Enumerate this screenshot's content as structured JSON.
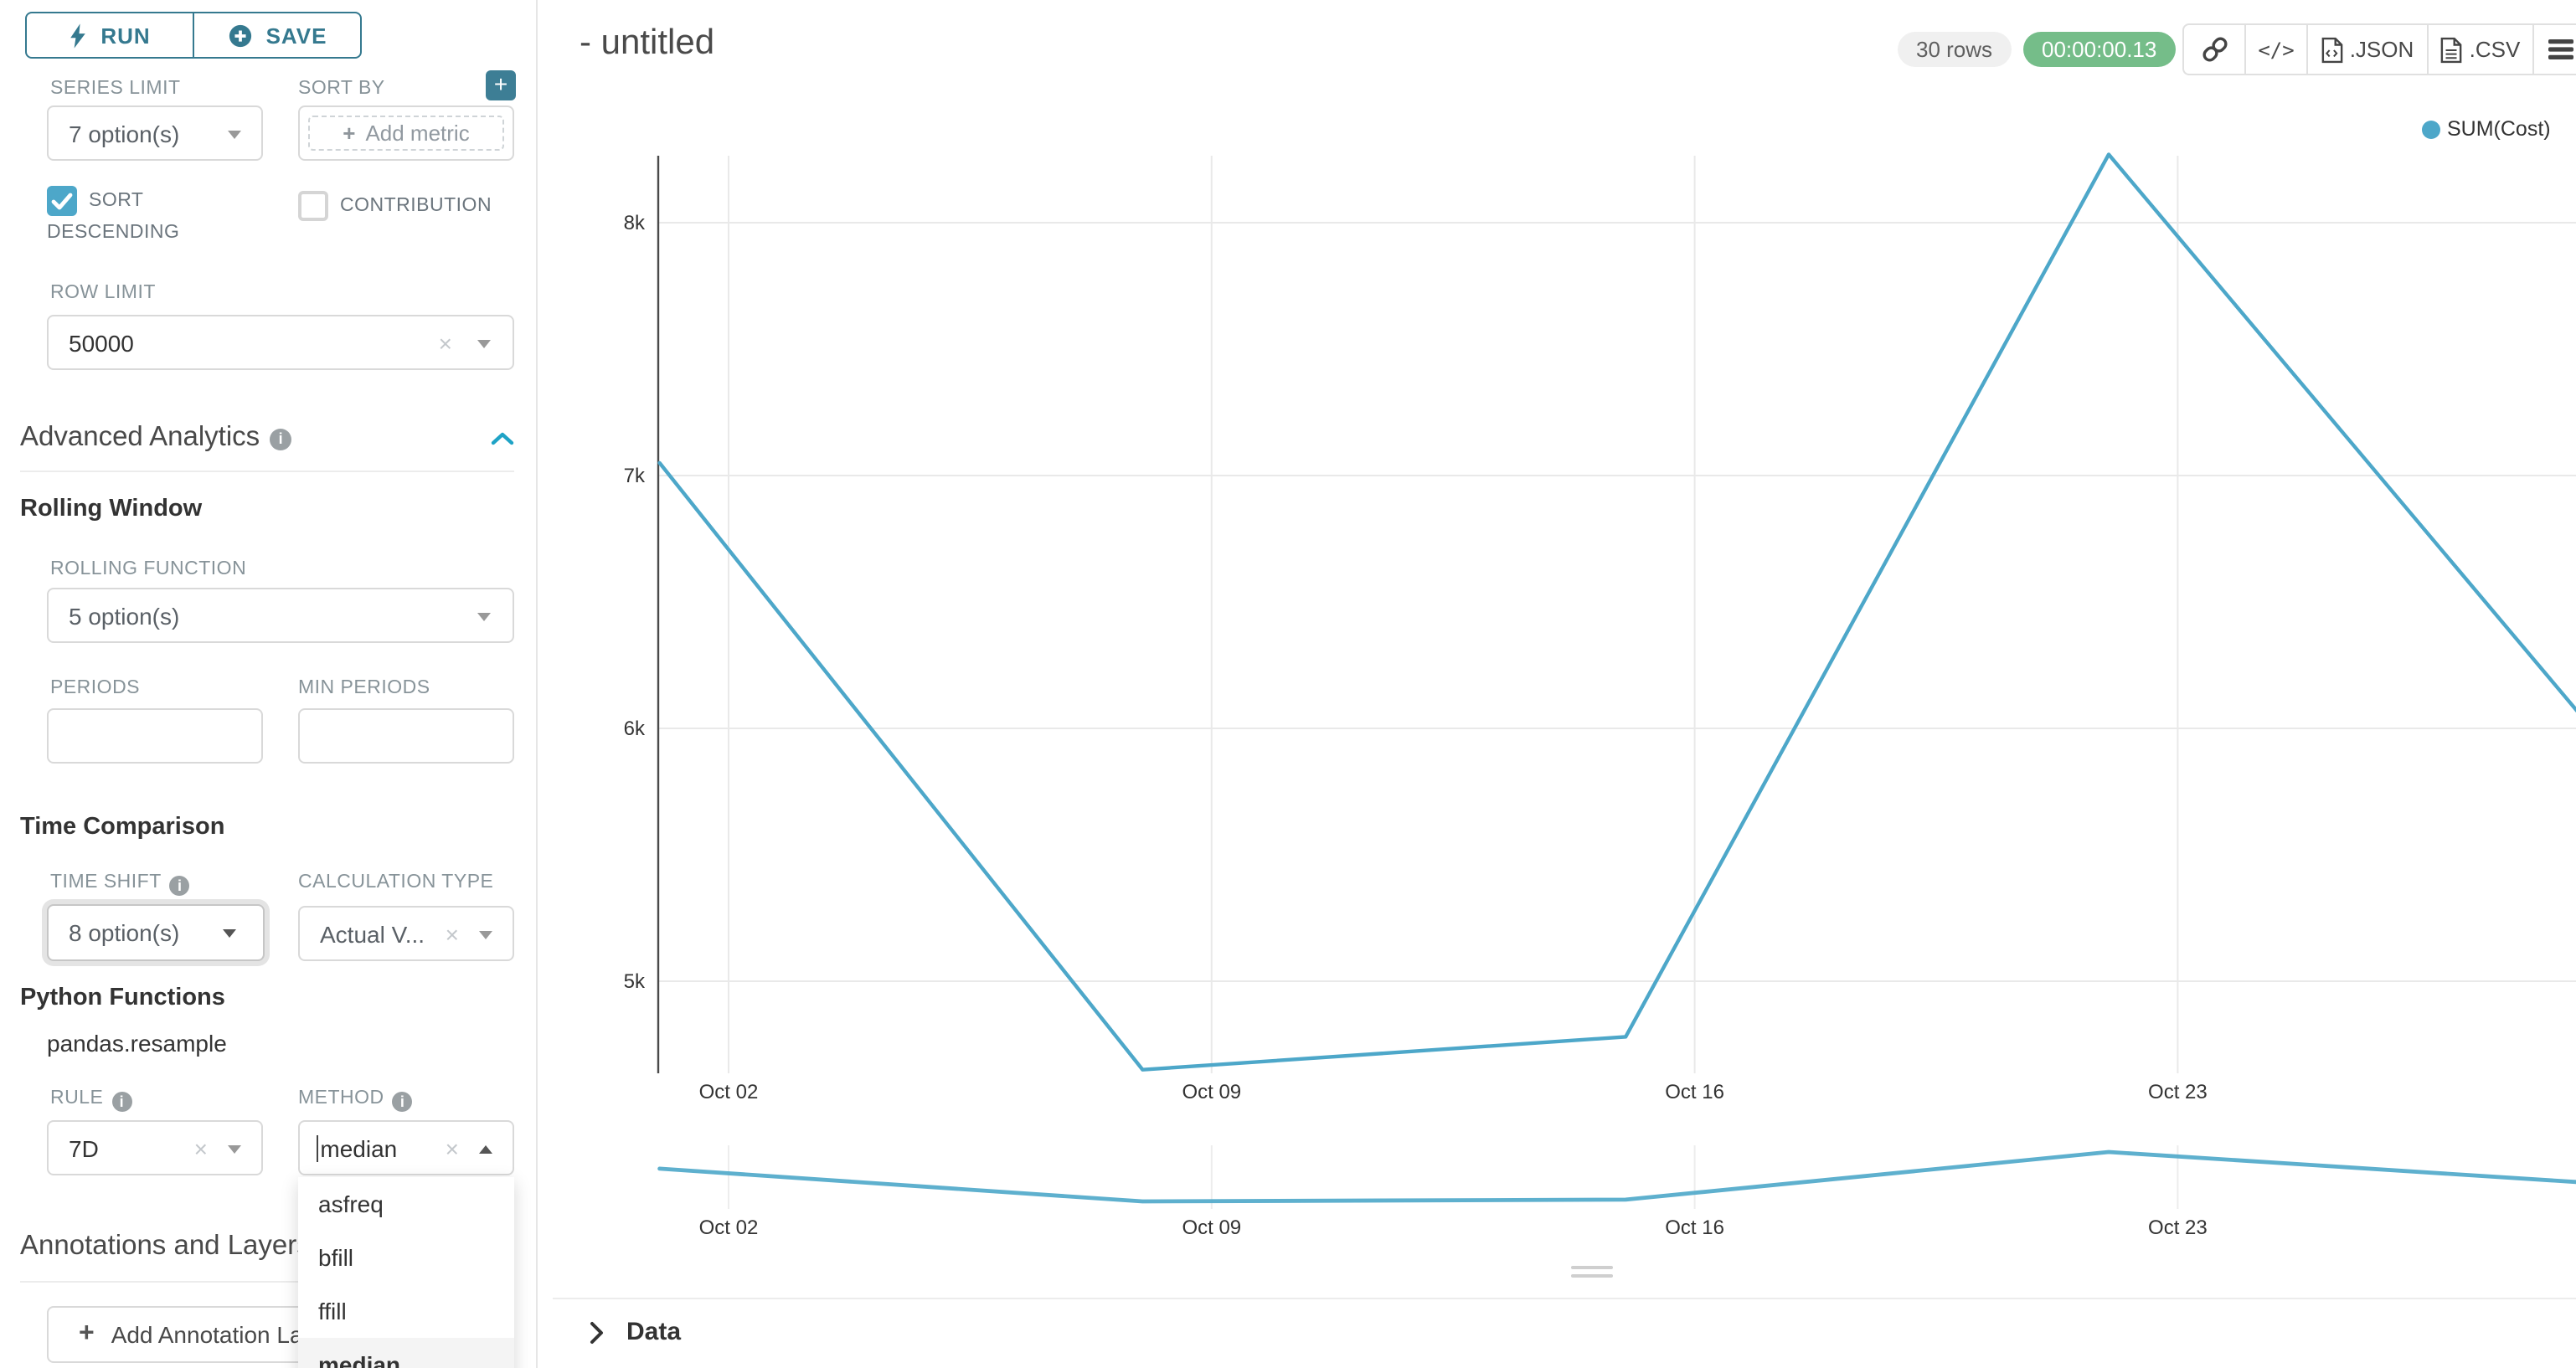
{
  "colors": {
    "teal_button": "#35798f",
    "plus_button": "#3d7e95",
    "accent_chevron": "#1fa3c6",
    "check_blue": "#4da7c9",
    "line_blue": "#4da7c9",
    "badge_green": "#75bd89"
  },
  "toolbar": {
    "run_label": "RUN",
    "save_label": "SAVE"
  },
  "controls": {
    "series_limit": {
      "label": "SERIES LIMIT",
      "value": "7 option(s)"
    },
    "sort_by": {
      "label": "SORT BY",
      "placeholder": "Add metric"
    },
    "sort_descending": {
      "label": "SORT DESCENDING",
      "checked": true
    },
    "contribution": {
      "label": "CONTRIBUTION",
      "checked": false
    },
    "row_limit": {
      "label": "ROW LIMIT",
      "value": "50000"
    },
    "advanced_analytics_title": "Advanced Analytics",
    "rolling_window": {
      "title": "Rolling Window",
      "function_label": "ROLLING FUNCTION",
      "function_value": "5 option(s)",
      "periods_label": "PERIODS",
      "periods_value": "",
      "min_periods_label": "MIN PERIODS",
      "min_periods_value": ""
    },
    "time_comparison": {
      "title": "Time Comparison",
      "time_shift_label": "TIME SHIFT",
      "time_shift_value": "8 option(s)",
      "calculation_type_label": "CALCULATION TYPE",
      "calculation_type_value": "Actual V..."
    },
    "python_functions": {
      "title": "Python Functions",
      "subtitle": "pandas.resample",
      "rule_label": "RULE",
      "rule_value": "7D",
      "method_label": "METHOD",
      "method_value": "median"
    },
    "method_dropdown": {
      "options": [
        "asfreq",
        "bfill",
        "ffill",
        "median"
      ],
      "selected": "median"
    },
    "annotations": {
      "title": "Annotations and Layers",
      "add_button_label": "Add Annotation Layer"
    }
  },
  "header": {
    "title": "- untitled",
    "rows_badge": "30 rows",
    "timer": "00:00:00.13",
    "export_json_label": ".JSON",
    "export_csv_label": ".CSV"
  },
  "data_panel": {
    "title": "Data"
  },
  "chart_data": {
    "type": "line",
    "legend": [
      {
        "name": "SUM(Cost)",
        "color": "#4da7c9"
      }
    ],
    "legend_position": "top-right",
    "grid": true,
    "line_color": "#4da7c9",
    "y_axis": {
      "ticks": [
        {
          "value": 5000,
          "label": "5k"
        },
        {
          "value": 6000,
          "label": "6k"
        },
        {
          "value": 7000,
          "label": "7k"
        },
        {
          "value": 8000,
          "label": "8k"
        }
      ],
      "visible_range": [
        4550,
        8400
      ]
    },
    "x_axis": {
      "gridline_labels": [
        "Oct 02",
        "Oct 09",
        "Oct 16",
        "Oct 23"
      ],
      "gridline_days": [
        0,
        7,
        14,
        21
      ]
    },
    "series": [
      {
        "name": "SUM(Cost)",
        "x_estimated_dates": [
          "Oct 01",
          "Oct 08",
          "Oct 15",
          "Oct 22",
          "Oct 29"
        ],
        "x_days": [
          -1,
          6,
          13,
          20,
          27
        ],
        "values": [
          7050,
          4650,
          4780,
          8270,
          6000
        ]
      }
    ],
    "mini_preview": true
  }
}
